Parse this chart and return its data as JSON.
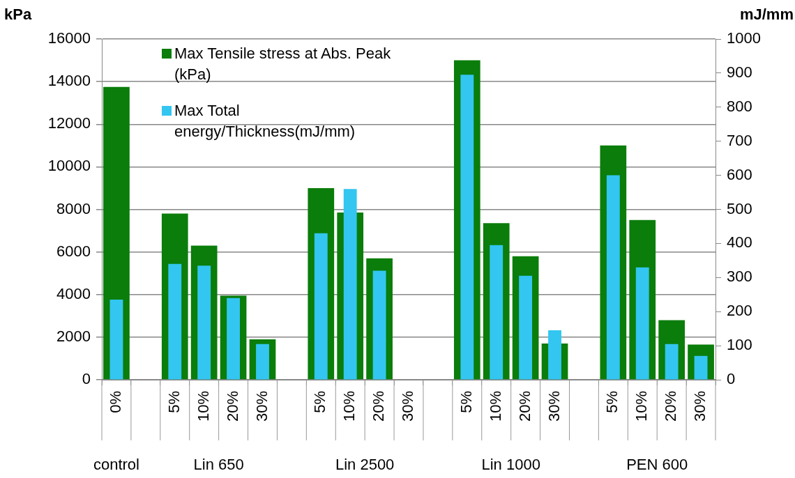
{
  "chart_data": {
    "type": "bar",
    "ylabel": "kPa",
    "y2label": "mJ/mm",
    "categories": [
      "0%",
      null,
      "5%",
      "10%",
      "20%",
      "30%",
      null,
      "5%",
      "10%",
      "20%",
      "30%",
      null,
      "5%",
      "10%",
      "20%",
      "30%",
      null,
      "5%",
      "10%",
      "20%",
      "30%"
    ],
    "annotations": [
      "control",
      "Lin 650",
      "Lin 2500",
      "Lin 1000",
      "PEN 600"
    ],
    "series": [
      {
        "name": "Max Tensile stress at Abs. Peak (kPa)",
        "color": "#0a7d0a",
        "values": [
          13750,
          null,
          7800,
          6300,
          3950,
          1900,
          null,
          9000,
          7850,
          5700,
          null,
          null,
          15000,
          7350,
          5800,
          1700,
          null,
          11000,
          7500,
          2800,
          1650
        ]
      },
      {
        "name": "Max Total energy/Thickness(mJ/mm)",
        "color": "#33c6f0",
        "axis": "y2",
        "values": [
          235,
          null,
          340,
          335,
          240,
          105,
          null,
          430,
          560,
          320,
          null,
          null,
          895,
          395,
          305,
          145,
          null,
          600,
          330,
          105,
          70
        ]
      }
    ],
    "ylim": [
      0,
      16000
    ],
    "yticks": [
      0,
      2000,
      4000,
      6000,
      8000,
      10000,
      12000,
      14000,
      16000
    ],
    "y2lim": [
      0,
      1000
    ],
    "y2ticks": [
      0,
      100,
      200,
      300,
      400,
      500,
      600,
      700,
      800,
      900,
      1000
    ],
    "grid": "y",
    "legend": "top left"
  }
}
